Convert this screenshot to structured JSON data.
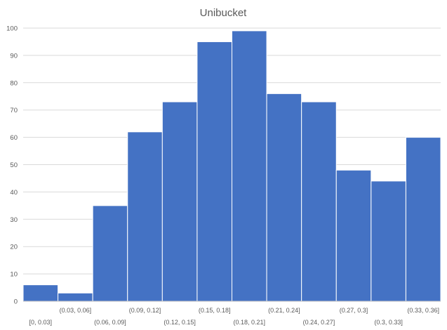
{
  "chart_data": {
    "type": "bar",
    "title": "Unibucket",
    "xlabel": "",
    "ylabel": "",
    "categories": [
      "[0, 0.03]",
      "(0.03, 0.06]",
      "(0.06, 0.09]",
      "(0.09, 0.12]",
      "(0.12, 0.15]",
      "(0.15, 0.18]",
      "(0.18, 0.21]",
      "(0.21, 0.24]",
      "(0.24, 0.27]",
      "(0.27, 0.3]",
      "(0.3, 0.33]",
      "(0.33, 0.36]"
    ],
    "values": [
      6,
      3,
      35,
      62,
      73,
      95,
      99,
      76,
      73,
      48,
      44,
      60
    ],
    "ylim": [
      0,
      100
    ],
    "yticks": [
      "0",
      "10",
      "20",
      "30",
      "40",
      "50",
      "60",
      "70",
      "80",
      "90",
      "100"
    ],
    "grid": true,
    "legend": "none",
    "bar_color": "#4472c4",
    "grid_color": "#d9d9d9"
  }
}
